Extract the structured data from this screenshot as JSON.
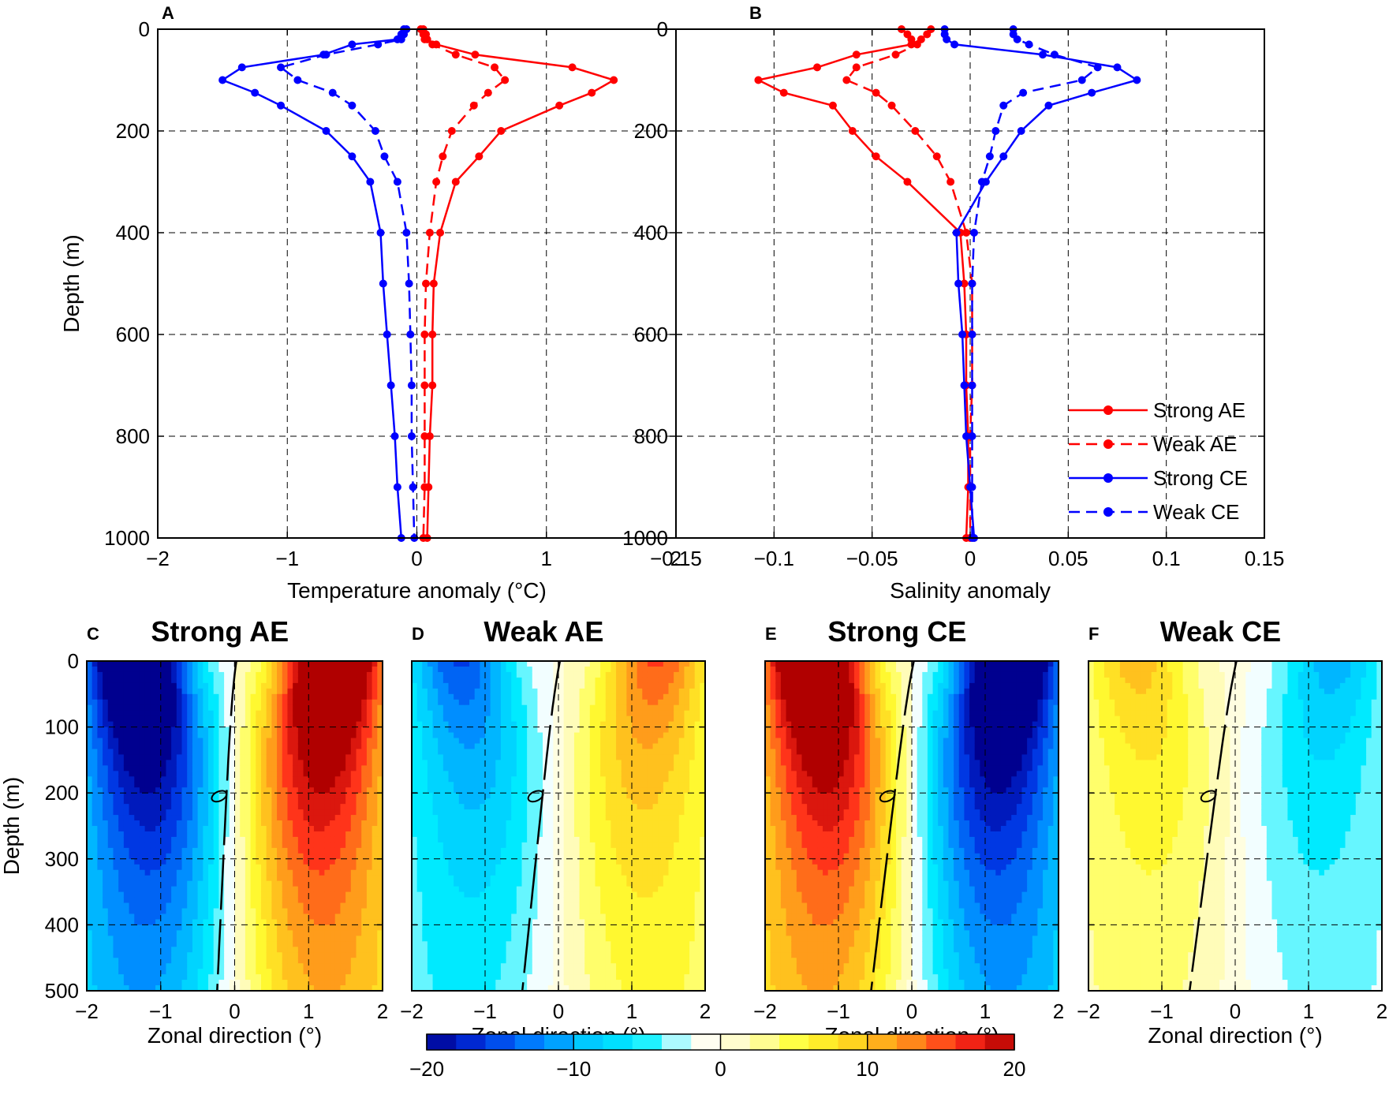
{
  "chart_data": [
    {
      "id": "A",
      "type": "line",
      "panel_label": "A",
      "xlabel": "Temperature anomaly (°C)",
      "ylabel": "Depth (m)",
      "xlim": [
        -2,
        2
      ],
      "ylim": [
        0,
        1000
      ],
      "xticks": [
        -2,
        -1,
        0,
        1,
        2
      ],
      "xtick_labels": [
        "−2",
        "−1",
        "0",
        "1",
        "2"
      ],
      "yticks": [
        0,
        200,
        400,
        600,
        800,
        1000
      ],
      "grid": true,
      "depth": [
        0,
        10,
        20,
        30,
        50,
        75,
        100,
        125,
        150,
        200,
        250,
        300,
        400,
        500,
        600,
        700,
        800,
        900,
        1000
      ],
      "series": [
        {
          "name": "Strong AE",
          "color": "#ff0000",
          "dashed": false,
          "values": [
            0.05,
            0.07,
            0.08,
            0.15,
            0.45,
            1.2,
            1.52,
            1.35,
            1.1,
            0.65,
            0.48,
            0.3,
            0.18,
            0.13,
            0.12,
            0.12,
            0.1,
            0.09,
            0.08
          ]
        },
        {
          "name": "Weak AE",
          "color": "#ff0000",
          "dashed": false,
          "values": [
            0.03,
            0.05,
            0.06,
            0.12,
            0.3,
            0.6,
            0.68,
            0.55,
            0.44,
            0.27,
            0.2,
            0.15,
            0.1,
            0.07,
            0.06,
            0.06,
            0.06,
            0.06,
            0.05
          ]
        },
        {
          "name": "Strong CE",
          "color": "#0000ff",
          "dashed": false,
          "values": [
            -0.1,
            -0.12,
            -0.15,
            -0.5,
            -0.72,
            -1.35,
            -1.5,
            -1.25,
            -1.05,
            -0.7,
            -0.5,
            -0.36,
            -0.28,
            -0.26,
            -0.23,
            -0.2,
            -0.17,
            -0.15,
            -0.12
          ]
        },
        {
          "name": "Weak CE",
          "color": "#0000ff",
          "dashed": false,
          "values": [
            -0.08,
            -0.1,
            -0.12,
            -0.3,
            -0.7,
            -1.05,
            -0.92,
            -0.65,
            -0.5,
            -0.32,
            -0.25,
            -0.15,
            -0.08,
            -0.06,
            -0.05,
            -0.04,
            -0.04,
            -0.03,
            -0.02
          ]
        }
      ]
    },
    {
      "id": "B",
      "type": "line",
      "panel_label": "B",
      "xlabel": "Salinity anomaly",
      "ylabel": "",
      "xlim": [
        -0.15,
        0.15
      ],
      "ylim": [
        0,
        1000
      ],
      "xticks": [
        -0.15,
        -0.1,
        -0.05,
        0,
        0.05,
        0.1,
        0.15
      ],
      "xtick_labels": [
        "−0.15",
        "−0.1",
        "−0.05",
        "0",
        "0.05",
        "0.1",
        "0.15"
      ],
      "yticks": [
        0,
        200,
        400,
        600,
        800,
        1000
      ],
      "grid": true,
      "legend_position": "bottom-right",
      "depth": [
        0,
        10,
        20,
        30,
        50,
        75,
        100,
        125,
        150,
        200,
        250,
        300,
        400,
        500,
        600,
        700,
        800,
        900,
        1000
      ],
      "series": [
        {
          "name": "Strong AE",
          "color": "#ff0000",
          "dashed": false,
          "values": [
            -0.02,
            -0.022,
            -0.025,
            -0.03,
            -0.058,
            -0.078,
            -0.108,
            -0.095,
            -0.07,
            -0.06,
            -0.048,
            -0.032,
            -0.005,
            -0.003,
            -0.002,
            -0.002,
            -0.001,
            -0.001,
            -0.002
          ]
        },
        {
          "name": "Weak AE",
          "color": "#ff0000",
          "dashed": false,
          "values": [
            -0.035,
            -0.032,
            -0.03,
            -0.027,
            -0.038,
            -0.058,
            -0.063,
            -0.048,
            -0.04,
            -0.028,
            -0.017,
            -0.01,
            -0.002,
            0.001,
            0.001,
            0.001,
            0.0,
            0.0,
            0.0
          ]
        },
        {
          "name": "Strong CE",
          "color": "#0000ff",
          "dashed": false,
          "values": [
            -0.013,
            -0.013,
            -0.012,
            -0.008,
            0.037,
            0.075,
            0.085,
            0.062,
            0.04,
            0.026,
            0.017,
            0.008,
            -0.007,
            -0.006,
            -0.004,
            -0.003,
            -0.002,
            0.0,
            0.002
          ]
        },
        {
          "name": "Weak CE",
          "color": "#0000ff",
          "dashed": false,
          "values": [
            0.022,
            0.022,
            0.024,
            0.03,
            0.043,
            0.065,
            0.057,
            0.027,
            0.017,
            0.013,
            0.01,
            0.006,
            0.002,
            0.001,
            0.001,
            0.001,
            0.001,
            0.001,
            0.001
          ]
        }
      ]
    },
    {
      "id": "C",
      "type": "heatmap",
      "panel_label": "C",
      "title": "Strong AE",
      "amp": 30,
      "zero_x": -0.18,
      "zero_tilt": -0.15,
      "xlabel": "Zonal direction (°)",
      "ylabel": "Depth (m)",
      "xlim": [
        -2,
        2
      ],
      "ylim": [
        0,
        500
      ]
    },
    {
      "id": "D",
      "type": "heatmap",
      "panel_label": "D",
      "title": "Weak AE",
      "amp": 15,
      "zero_x": -0.2,
      "zero_tilt": -0.33,
      "xlabel": "Zonal direction (°)",
      "ylabel": "",
      "xlim": [
        -2,
        2
      ],
      "ylim": [
        0,
        500
      ]
    },
    {
      "id": "E",
      "type": "heatmap",
      "panel_label": "E",
      "title": "Strong CE",
      "amp": -30,
      "zero_x": -0.15,
      "zero_tilt": -0.38,
      "xlabel": "Zonal direction (°)",
      "ylabel": "",
      "xlim": [
        -2,
        2
      ],
      "ylim": [
        0,
        500
      ]
    },
    {
      "id": "F",
      "type": "heatmap",
      "panel_label": "F",
      "title": "Weak CE",
      "amp": -10,
      "zero_x": -0.22,
      "zero_tilt": -0.42,
      "xlabel": "Zonal direction (°)",
      "ylabel": "",
      "xlim": [
        -2,
        2
      ],
      "ylim": [
        0,
        500
      ]
    }
  ],
  "heatmap_axes": {
    "xticks": [
      -2,
      -1,
      0,
      1,
      2
    ],
    "xtick_labels": [
      "−2",
      "−1",
      "0",
      "1",
      "2"
    ],
    "yticks": [
      0,
      100,
      200,
      300,
      400,
      500
    ]
  },
  "colorbar": {
    "range": [
      -20,
      20
    ],
    "ticks": [
      -20,
      -10,
      0,
      10,
      20
    ],
    "tick_labels": [
      "−20",
      "−10",
      "0",
      "10",
      "20"
    ],
    "colors": [
      "#00008f",
      "#0030e0",
      "#0080ff",
      "#00c8ff",
      "#00f0ff",
      "#ffffff",
      "#fffcc0",
      "#ffff33",
      "#ffd21f",
      "#ff8f1a",
      "#ff2a1a",
      "#b00000"
    ]
  }
}
